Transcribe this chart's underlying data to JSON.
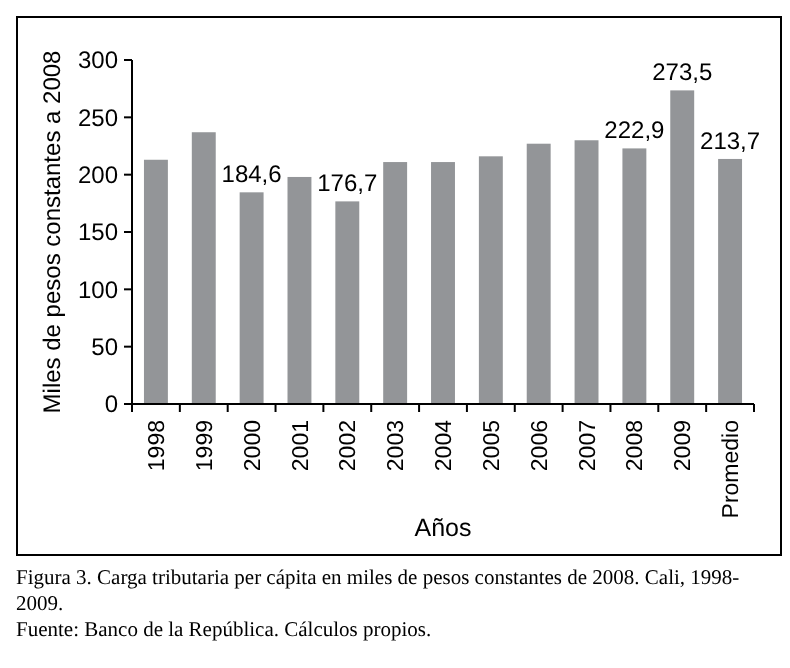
{
  "chart_data": {
    "type": "bar",
    "xlabel": "Años",
    "ylabel": "Miles de pesos constantes a 2008",
    "categories": [
      "1998",
      "1999",
      "2000",
      "2001",
      "2002",
      "2003",
      "2004",
      "2005",
      "2006",
      "2007",
      "2008",
      "2009",
      "Promedio"
    ],
    "values": [
      213,
      237,
      184.6,
      198,
      176.7,
      211,
      211,
      216,
      227,
      230,
      222.9,
      273.5,
      213.7
    ],
    "value_labels": [
      null,
      null,
      "184,6",
      null,
      "176,7",
      null,
      null,
      null,
      null,
      null,
      "222,9",
      "273,5",
      "213,7"
    ],
    "color": "#939598",
    "ylim": [
      0,
      300
    ],
    "yticks": [
      0,
      50,
      100,
      150,
      200,
      250,
      300
    ],
    "grid": false,
    "annotations": [
      "Figura 3. Carga tributaria per cápita en miles de pesos constantes de 2008. Cali, 1998-2009.",
      "Fuente: Banco de la República. Cálculos propios."
    ]
  }
}
